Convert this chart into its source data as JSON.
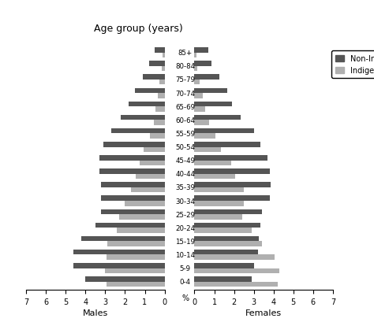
{
  "age_groups": [
    "0-4",
    "5-9",
    "10-14",
    "15-19",
    "20-24",
    "25-29",
    "30-34",
    "35-39",
    "40-44",
    "45-49",
    "50-54",
    "55-59",
    "60-64",
    "65-69",
    "70-74",
    "75-79",
    "80-84",
    "85+"
  ],
  "males_non_indigenous": [
    4.0,
    4.6,
    4.6,
    4.2,
    3.5,
    3.2,
    3.2,
    3.2,
    3.3,
    3.3,
    3.1,
    2.7,
    2.2,
    1.8,
    1.5,
    1.1,
    0.8,
    0.5
  ],
  "males_indigenous": [
    2.95,
    3.0,
    2.95,
    2.9,
    2.4,
    2.3,
    2.0,
    1.7,
    1.45,
    1.25,
    1.05,
    0.75,
    0.55,
    0.45,
    0.35,
    0.25,
    0.15,
    0.1
  ],
  "females_non_indigenous": [
    2.9,
    3.0,
    3.2,
    3.25,
    3.35,
    3.4,
    3.8,
    3.85,
    3.8,
    3.7,
    3.35,
    3.0,
    2.35,
    1.9,
    1.65,
    1.25,
    0.85,
    0.7
  ],
  "females_indigenous": [
    4.2,
    4.3,
    4.05,
    3.4,
    2.9,
    2.4,
    2.5,
    2.5,
    2.05,
    1.85,
    1.35,
    1.05,
    0.75,
    0.55,
    0.4,
    0.25,
    0.15,
    0.1
  ],
  "non_indigenous_color": "#555555",
  "indigenous_color": "#b0b0b0",
  "title": "Age group (years)",
  "xlabel_males": "Males",
  "xlabel_females": "Females",
  "xlim": 7,
  "bar_height": 0.38,
  "figsize": [
    4.74,
    4.1
  ],
  "dpi": 100
}
